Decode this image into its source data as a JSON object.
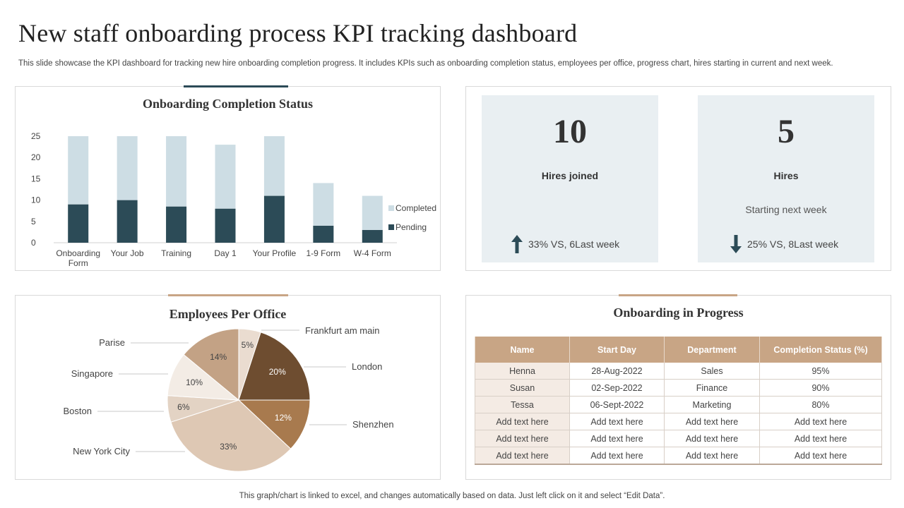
{
  "title": "New staff onboarding process KPI tracking dashboard",
  "subtitle": "This slide showcase the KPI dashboard for tracking new hire onboarding completion progress. It includes KPIs such as onboarding completion status, employees per office, progress chart, hires starting in current and next week.",
  "footer": "This graph/chart is linked to excel,  and changes automatically based on data. Just left click on it and select “Edit Data”.",
  "colors": {
    "completed": "#cddde4",
    "pending": "#2c4b57",
    "panel_accent_dark": "#2c4b57",
    "panel_accent_tan": "#c8a585",
    "table_header": "#c8a585",
    "kpi_background": "#e9eff2"
  },
  "chart_data": [
    {
      "type": "bar",
      "stacked": true,
      "title": "Onboarding Completion Status",
      "categories": [
        [
          "Onboarding",
          "Form"
        ],
        [
          "Your Job"
        ],
        [
          "Training"
        ],
        [
          "Day 1"
        ],
        [
          "Your Profile"
        ],
        [
          "1-9 Form"
        ],
        [
          "W-4 Form"
        ]
      ],
      "series": [
        {
          "name": "Pending",
          "values": [
            9,
            10,
            8.5,
            8,
            11,
            4,
            3
          ],
          "color": "#2c4b57"
        },
        {
          "name": "Completed",
          "values": [
            16,
            15,
            16.5,
            15,
            14,
            10,
            8
          ],
          "color": "#cddde4"
        }
      ],
      "legend": [
        "Completed",
        "Pending"
      ],
      "ylim": [
        0,
        25
      ],
      "yticks": [
        0,
        5,
        10,
        15,
        20,
        25
      ],
      "grid": false,
      "legend_position": "right"
    },
    {
      "type": "pie",
      "title": "Employees Per Office",
      "slices": [
        {
          "label": "Frankfurt  am main",
          "value": 5,
          "pct": "5%",
          "color": "#eadcd0",
          "text_color": "#444"
        },
        {
          "label": "London",
          "value": 20,
          "pct": "20%",
          "color": "#6e4d30",
          "text_color": "#ffffff"
        },
        {
          "label": "Shenzhen",
          "value": 12,
          "pct": "12%",
          "color": "#a87a4e",
          "text_color": "#ffffff"
        },
        {
          "label": "New York City",
          "value": 33,
          "pct": "33%",
          "color": "#dec8b4",
          "text_color": "#444"
        },
        {
          "label": "Boston",
          "value": 6,
          "pct": "6%",
          "color": "#e3d3c4",
          "text_color": "#444"
        },
        {
          "label": "Singapore",
          "value": 10,
          "pct": "10%",
          "color": "#f3ece5",
          "text_color": "#444"
        },
        {
          "label": "Parise",
          "value": 14,
          "pct": "14%",
          "color": "#c3a285",
          "text_color": "#444"
        }
      ]
    }
  ],
  "kpis": {
    "hires_joined": {
      "number": "10",
      "label": "Hires joined",
      "trend_text": "33% VS, 6Last week",
      "trend": "up-arrow-icon"
    },
    "hires_next": {
      "number": "5",
      "label": "Hires",
      "sub": "Starting next week",
      "trend_text": "25% VS, 8Last week",
      "trend": "down-arrow-icon"
    }
  },
  "progress": {
    "title": "Onboarding in Progress",
    "columns": [
      "Name",
      "Start Day",
      "Department",
      "Completion Status (%)"
    ],
    "rows": [
      [
        "Henna",
        "28-Aug-2022",
        "Sales",
        "95%"
      ],
      [
        "Susan",
        "02-Sep-2022",
        "Finance",
        "90%"
      ],
      [
        "Tessa",
        "06-Sept-2022",
        "Marketing",
        "80%"
      ],
      [
        "Add text here",
        "Add text here",
        "Add text here",
        "Add text here"
      ],
      [
        "Add text here",
        "Add text here",
        "Add text here",
        "Add text here"
      ],
      [
        "Add text here",
        "Add text here",
        "Add text here",
        "Add text here"
      ]
    ]
  }
}
